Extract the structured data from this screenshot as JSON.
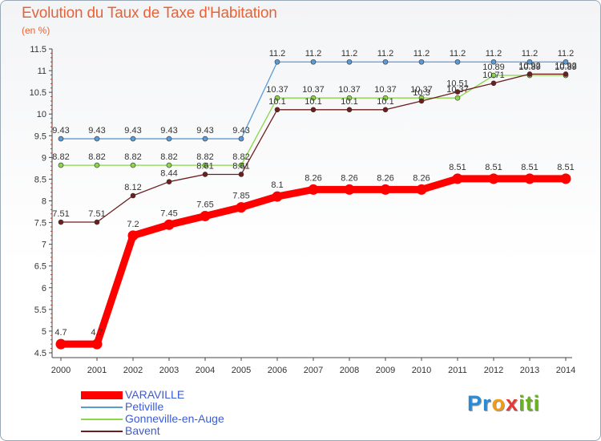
{
  "page": {
    "title": "Evolution du Taux de Taxe d'Habitation",
    "unit": "(en %)",
    "logo_letters": [
      "P",
      "r",
      "o",
      "x",
      "i",
      "t",
      "i"
    ],
    "logo_colors": [
      "#2a8ad4",
      "#2a8ad4",
      "#f39c12",
      "#e53935",
      "#6ab023",
      "#6ab023",
      "#6ab023"
    ]
  },
  "chart_data": {
    "type": "line",
    "title": "Evolution du Taux de Taxe d'Habitation",
    "ylabel": "(en %)",
    "x": [
      2000,
      2001,
      2002,
      2003,
      2004,
      2005,
      2006,
      2007,
      2008,
      2009,
      2010,
      2011,
      2012,
      2013,
      2014
    ],
    "x_tick_labels": [
      "2000",
      "2001",
      "2002",
      "2003",
      "2004",
      "2005",
      "2006",
      "2007",
      "2008",
      "2009",
      "2010",
      "2011",
      "2012",
      "2013",
      "2014"
    ],
    "ylim": [
      4.5,
      11.5
    ],
    "y_ticks": [
      4.5,
      5,
      5.5,
      6,
      6.5,
      7,
      7.5,
      8,
      8.5,
      9,
      9.5,
      10,
      10.5,
      11,
      11.5
    ],
    "y_tick_labels": [
      "4.5",
      "5",
      "5.5",
      "6",
      "6.5",
      "7",
      "7.5",
      "8",
      "8.5",
      "9",
      "9.5",
      "10",
      "10.5",
      "11",
      "11.5"
    ],
    "grid": false,
    "legend_position": "bottom-left",
    "series": [
      {
        "name": "Petiville",
        "color": "#5b9bd5",
        "values": [
          9.43,
          9.43,
          9.43,
          9.43,
          9.43,
          9.43,
          11.2,
          11.2,
          11.2,
          11.2,
          11.2,
          11.2,
          11.2,
          11.2,
          11.2
        ],
        "labels": [
          "9.43",
          "9.43",
          "9.43",
          "9.43",
          "9.43",
          "9.43",
          "11.2",
          "11.2",
          "11.2",
          "11.2",
          "11.2",
          "11.2",
          "11.2",
          "11.2",
          "11.2"
        ]
      },
      {
        "name": "Gonneville-en-Auge",
        "color": "#8bd64a",
        "values": [
          8.82,
          8.82,
          8.82,
          8.82,
          8.82,
          8.82,
          10.37,
          10.37,
          10.37,
          10.37,
          10.37,
          10.37,
          10.89,
          10.89,
          10.89
        ],
        "labels": [
          "8.82",
          "8.82",
          "8.82",
          "8.82",
          "8.82",
          "8.82",
          "10.37",
          "10.37",
          "10.37",
          "10.37",
          "10.37",
          "10.37",
          "10.89",
          "10.89",
          "10.89"
        ]
      },
      {
        "name": "Bavent",
        "color": "#6e1e1e",
        "values": [
          7.51,
          7.51,
          8.12,
          8.44,
          8.61,
          8.61,
          10.1,
          10.1,
          10.1,
          10.1,
          10.3,
          10.51,
          10.71,
          10.92,
          10.92
        ],
        "labels": [
          "7.51",
          "7.51",
          "8.12",
          "8.44",
          "8.61",
          "8.61",
          "10.1",
          "10.1",
          "10.1",
          "10.1",
          "10.3",
          "10.51",
          "10.71",
          "10.92",
          "10.92"
        ]
      },
      {
        "name": "VARAVILLE",
        "color": "#ff0000",
        "values": [
          4.7,
          4.7,
          7.2,
          7.45,
          7.65,
          7.85,
          8.1,
          8.26,
          8.26,
          8.26,
          8.26,
          8.51,
          8.51,
          8.51,
          8.51
        ],
        "labels": [
          "4.7",
          "4.7",
          "7.2",
          "7.45",
          "7.65",
          "7.85",
          "8.1",
          "8.26",
          "8.26",
          "8.26",
          "8.26",
          "8.51",
          "8.51",
          "8.51",
          "8.51"
        ]
      }
    ]
  },
  "legend": [
    {
      "name": "VARAVILLE",
      "color": "#ff0000"
    },
    {
      "name": "Petiville",
      "color": "#5b9bd5"
    },
    {
      "name": "Gonneville-en-Auge",
      "color": "#8bd64a"
    },
    {
      "name": "Bavent",
      "color": "#6e1e1e"
    }
  ]
}
